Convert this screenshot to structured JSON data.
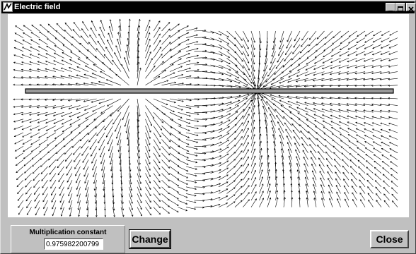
{
  "window": {
    "title": "Electric field"
  },
  "controls": {
    "minimize": "_",
    "maximize": "□",
    "close": "×"
  },
  "field": {
    "rod_color": "#9a9a9a",
    "arrow_color": "#000000",
    "source_positive_x_fraction": 0.32,
    "source_negative_x_fraction": 0.62
  },
  "multiplication": {
    "label": "Multiplication constant",
    "value": "0.975982200799"
  },
  "buttons": {
    "change": "Change",
    "close": "Close"
  }
}
